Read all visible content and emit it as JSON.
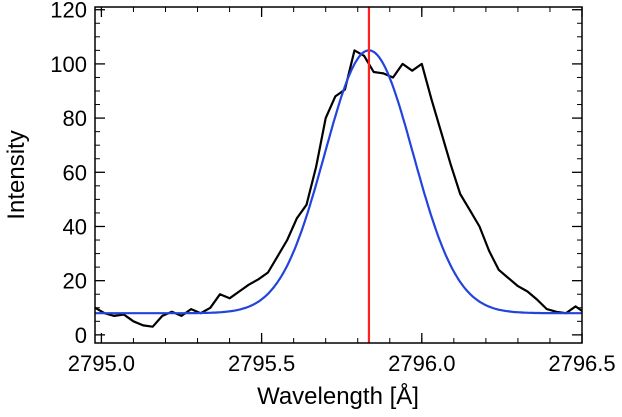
{
  "chart_data": {
    "type": "line",
    "xlabel": "Wavelength [Å]",
    "ylabel": "Intensity",
    "xlim": [
      2794.98,
      2796.5
    ],
    "ylim": [
      -3,
      121
    ],
    "x_ticks": [
      2795.0,
      2795.5,
      2796.0,
      2796.5
    ],
    "x_tick_labels": [
      "2795.0",
      "2795.5",
      "2796.0",
      "2796.5"
    ],
    "y_ticks": [
      0,
      20,
      40,
      60,
      80,
      100,
      120
    ],
    "y_tick_labels": [
      "0",
      "20",
      "40",
      "60",
      "80",
      "100",
      "120"
    ],
    "grid": false,
    "legend": "none",
    "series": [
      {
        "role": "observed",
        "color": "#000000",
        "points": [
          [
            2794.98,
            10.0
          ],
          [
            2795.01,
            8.0
          ],
          [
            2795.04,
            7.0
          ],
          [
            2795.07,
            7.5
          ],
          [
            2795.1,
            5.0
          ],
          [
            2795.13,
            3.5
          ],
          [
            2795.16,
            3.0
          ],
          [
            2795.19,
            7.0
          ],
          [
            2795.22,
            8.5
          ],
          [
            2795.25,
            7.0
          ],
          [
            2795.28,
            9.5
          ],
          [
            2795.31,
            8.0
          ],
          [
            2795.34,
            10.0
          ],
          [
            2795.37,
            15.0
          ],
          [
            2795.4,
            13.5
          ],
          [
            2795.43,
            16.0
          ],
          [
            2795.46,
            18.5
          ],
          [
            2795.49,
            20.5
          ],
          [
            2795.52,
            23.0
          ],
          [
            2795.55,
            29.0
          ],
          [
            2795.58,
            35.0
          ],
          [
            2795.61,
            43.0
          ],
          [
            2795.64,
            48.0
          ],
          [
            2795.67,
            62.0
          ],
          [
            2795.7,
            80.0
          ],
          [
            2795.73,
            88.0
          ],
          [
            2795.76,
            90.5
          ],
          [
            2795.79,
            105.0
          ],
          [
            2795.82,
            103.0
          ],
          [
            2795.85,
            97.0
          ],
          [
            2795.88,
            96.5
          ],
          [
            2795.91,
            95.0
          ],
          [
            2795.94,
            100.0
          ],
          [
            2795.97,
            97.5
          ],
          [
            2796.0,
            100.0
          ],
          [
            2796.03,
            87.0
          ],
          [
            2796.06,
            75.0
          ],
          [
            2796.09,
            63.0
          ],
          [
            2796.12,
            52.0
          ],
          [
            2796.15,
            46.0
          ],
          [
            2796.18,
            40.0
          ],
          [
            2796.21,
            31.0
          ],
          [
            2796.24,
            24.0
          ],
          [
            2796.27,
            21.0
          ],
          [
            2796.3,
            18.0
          ],
          [
            2796.33,
            16.0
          ],
          [
            2796.36,
            13.0
          ],
          [
            2796.39,
            9.5
          ],
          [
            2796.42,
            8.5
          ],
          [
            2796.45,
            8.0
          ],
          [
            2796.48,
            10.5
          ],
          [
            2796.51,
            8.0
          ],
          [
            2796.54,
            11.0
          ],
          [
            2796.57,
            7.0
          ],
          [
            2796.6,
            9.0
          ]
        ]
      },
      {
        "role": "gaussian-fit",
        "color": "#2244dd",
        "baseline": 8,
        "amplitude": 97,
        "center": 2795.835,
        "sigma": 0.138
      }
    ],
    "reference_line": {
      "x": 2795.835,
      "color": "#ff2020"
    }
  }
}
